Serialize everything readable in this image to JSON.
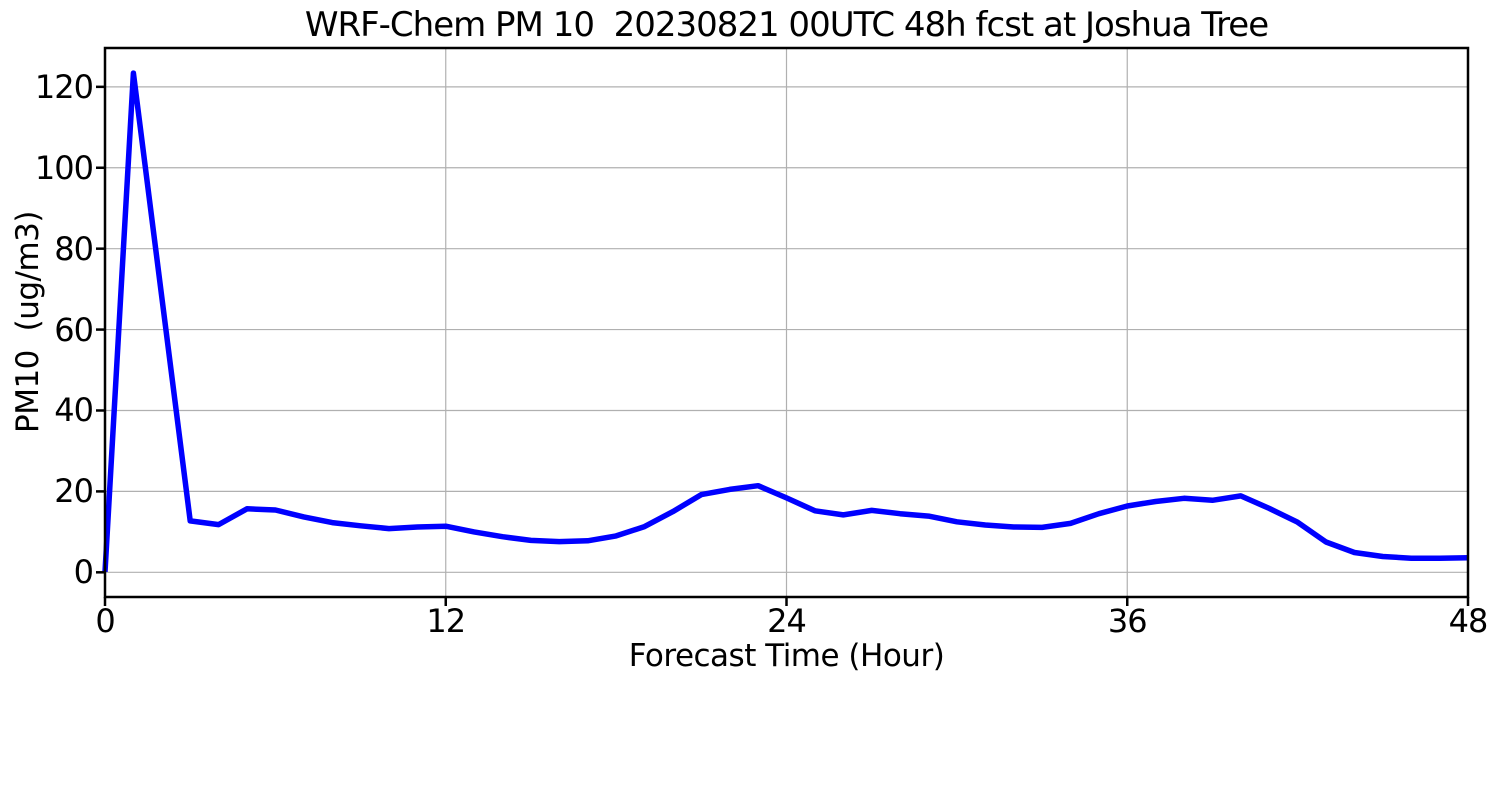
{
  "chart_data": {
    "type": "line",
    "title": "WRF-Chem PM 10  20230821 00UTC 48h fcst at Joshua Tree",
    "xlabel": "Forecast Time (Hour)",
    "ylabel": "PM10  (ug/m3)",
    "x": [
      0,
      1,
      2,
      3,
      4,
      5,
      6,
      7,
      8,
      9,
      10,
      11,
      12,
      13,
      14,
      15,
      16,
      17,
      18,
      19,
      20,
      21,
      22,
      23,
      24,
      25,
      26,
      27,
      28,
      29,
      30,
      31,
      32,
      33,
      34,
      35,
      36,
      37,
      38,
      39,
      40,
      41,
      42,
      43,
      44,
      45,
      46,
      47,
      48
    ],
    "values": [
      0.1,
      123.4,
      68.0,
      12.7,
      11.8,
      15.7,
      15.4,
      13.7,
      12.3,
      11.5,
      10.8,
      11.2,
      11.4,
      10.0,
      8.8,
      7.9,
      7.6,
      7.8,
      9.0,
      11.3,
      15.0,
      19.2,
      20.5,
      21.4,
      18.4,
      15.2,
      14.2,
      15.3,
      14.5,
      13.9,
      12.5,
      11.7,
      11.2,
      11.1,
      12.1,
      14.5,
      16.4,
      17.5,
      18.3,
      17.8,
      18.9,
      15.8,
      12.4,
      7.5,
      4.9,
      3.9,
      3.5,
      3.5,
      3.6
    ],
    "xlim": [
      0,
      48
    ],
    "ylim": [
      -6.1,
      129.6
    ],
    "xticks": [
      0,
      12,
      24,
      36,
      48
    ],
    "yticks": [
      0,
      20,
      40,
      60,
      80,
      100,
      120
    ],
    "grid": true,
    "legend": "none",
    "line_color": "#0000ff",
    "grid_color": "#b0b0b0",
    "axis_color": "#000000",
    "text_color": "#000000",
    "background": "#ffffff"
  }
}
